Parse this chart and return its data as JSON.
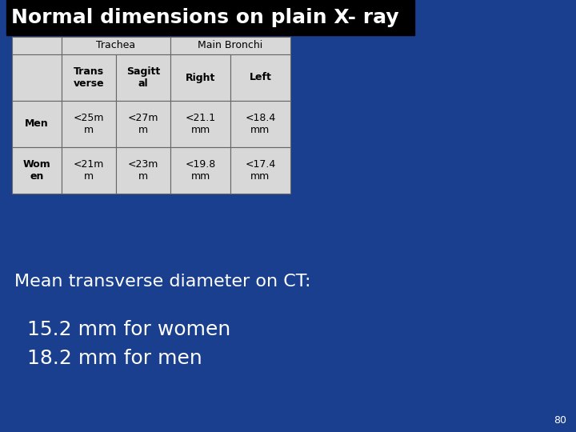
{
  "title": "Normal dimensions on plain X- ray",
  "title_fontsize": 18,
  "title_color": "white",
  "title_bg_color": "#000000",
  "bg_color": "#1a3f8f",
  "table": {
    "cell_bg": "#d8d8d8",
    "cell_bg_white": "#e8e8e8",
    "grid_color": "#666666",
    "text_color": "black",
    "span_header_fontsize": 9,
    "col_header_fontsize": 9,
    "cell_fontsize": 9,
    "row_label_fontsize": 9
  },
  "ct_text": "Mean transverse diameter on CT:",
  "ct_text_color": "white",
  "ct_text_fontsize": 16,
  "bullet_text": "  15.2 mm for women\n  18.2 mm for men",
  "bullet_fontsize": 18,
  "bullet_color": "white",
  "page_number": "80",
  "page_num_color": "white",
  "page_num_fontsize": 9
}
